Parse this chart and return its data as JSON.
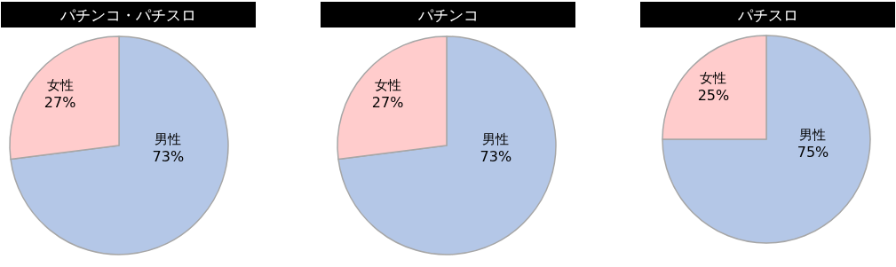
{
  "chart_data": [
    {
      "type": "pie",
      "title": "パチンコ・パチスロ",
      "categories": [
        "男性",
        "女性"
      ],
      "values": [
        73,
        27
      ],
      "colors": [
        "#b4c7e7",
        "#ffcccc"
      ],
      "value_labels": [
        "73%",
        "27%"
      ]
    },
    {
      "type": "pie",
      "title": "パチンコ",
      "categories": [
        "男性",
        "女性"
      ],
      "values": [
        73,
        27
      ],
      "colors": [
        "#b4c7e7",
        "#ffcccc"
      ],
      "value_labels": [
        "73%",
        "27%"
      ]
    },
    {
      "type": "pie",
      "title": "パチスロ",
      "categories": [
        "男性",
        "女性"
      ],
      "values": [
        75,
        25
      ],
      "colors": [
        "#b4c7e7",
        "#ffcccc"
      ],
      "value_labels": [
        "75%",
        "25%"
      ]
    }
  ]
}
